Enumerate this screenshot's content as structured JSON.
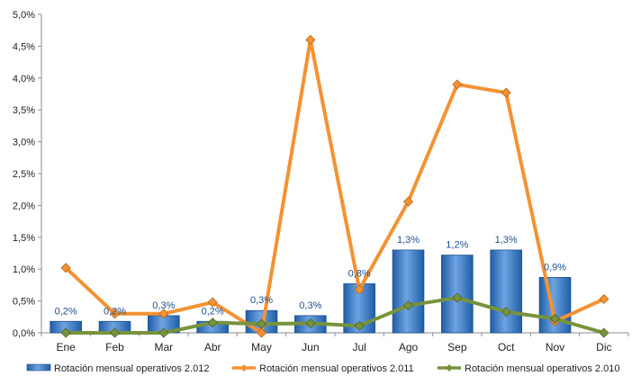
{
  "chart_data": {
    "type": "bar",
    "categories": [
      "Ene",
      "Feb",
      "Mar",
      "Abr",
      "May",
      "Jun",
      "Jul",
      "Ago",
      "Sep",
      "Oct",
      "Nov",
      "Dic"
    ],
    "ylim": [
      0,
      5.0
    ],
    "y_ticks": [
      "0,0%",
      "0,5%",
      "1,0%",
      "1,5%",
      "2,0%",
      "2,5%",
      "3,0%",
      "3,5%",
      "4,0%",
      "4,5%",
      "5,0%"
    ],
    "grid": false,
    "legend_position": "bottom",
    "series": [
      {
        "name": "Rotación mensual operativos 2.012",
        "type": "bar",
        "color": "#3e7ec9",
        "values": [
          0.18,
          0.18,
          0.27,
          0.18,
          0.35,
          0.27,
          0.77,
          1.3,
          1.22,
          1.3,
          0.87,
          null
        ],
        "data_labels": [
          "0,2%",
          "0,2%",
          "0,3%",
          "0,2%",
          "0,3%",
          "0,3%",
          "0,8%",
          "1,3%",
          "1,2%",
          "1,3%",
          "0,9%",
          ""
        ]
      },
      {
        "name": "Rotación mensual operativos 2.011",
        "type": "line",
        "color": "#f39233",
        "values": [
          1.02,
          0.3,
          0.3,
          0.48,
          0.0,
          4.6,
          0.68,
          2.06,
          3.9,
          3.77,
          0.18,
          0.53
        ]
      },
      {
        "name": "Rotación mensual operativos 2.010",
        "type": "line",
        "color": "#77933c",
        "values": [
          0.0,
          0.0,
          0.0,
          0.16,
          0.14,
          0.15,
          0.11,
          0.43,
          0.55,
          0.33,
          0.22,
          0.0
        ]
      }
    ]
  }
}
